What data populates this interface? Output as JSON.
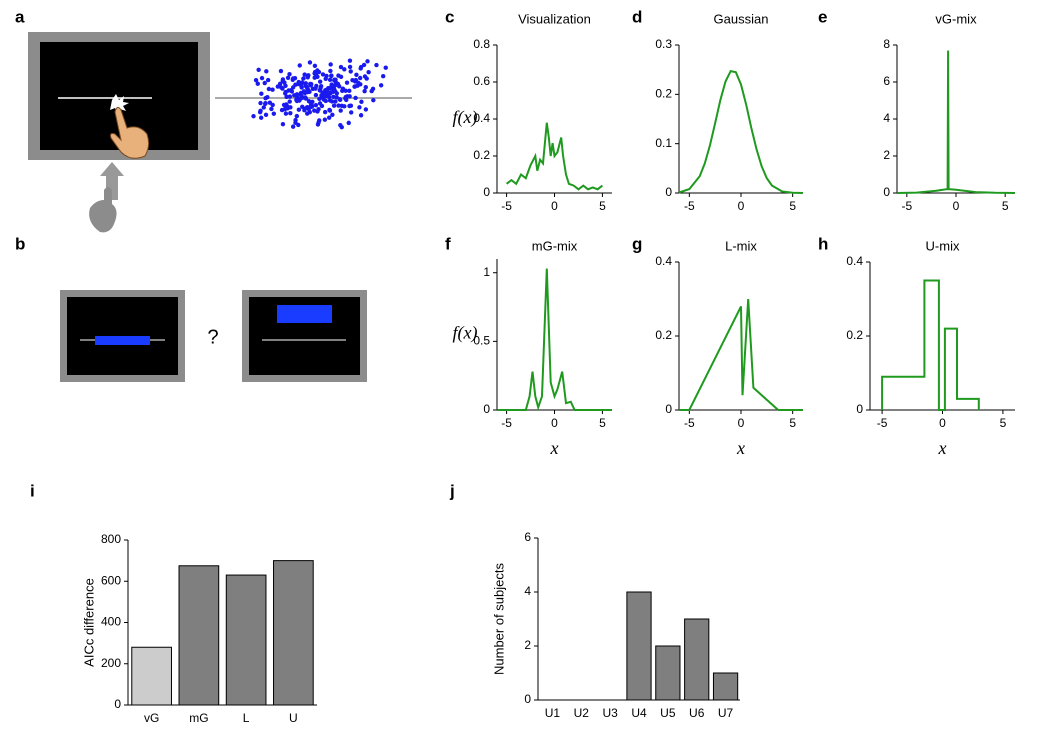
{
  "panel_labels": [
    "a",
    "b",
    "c",
    "d",
    "e",
    "f",
    "g",
    "h",
    "i",
    "j"
  ],
  "question_mark": "?",
  "chart_data": [
    {
      "type": "line",
      "title": "Visualization",
      "ylabel": "f(x)",
      "color": "#1f9a1f",
      "x": [
        -5,
        -4.5,
        -4,
        -3.5,
        -3,
        -2.5,
        -2,
        -1.8,
        -1.5,
        -1.2,
        -0.8,
        -0.6,
        -0.4,
        -0.2,
        0,
        0.3,
        0.7,
        0.9,
        1.2,
        1.5,
        2,
        2.5,
        3,
        3.5,
        4,
        4.5,
        5
      ],
      "values": [
        0.05,
        0.07,
        0.05,
        0.1,
        0.08,
        0.15,
        0.2,
        0.12,
        0.18,
        0.16,
        0.38,
        0.3,
        0.2,
        0.27,
        0.2,
        0.22,
        0.3,
        0.2,
        0.1,
        0.05,
        0.04,
        0.02,
        0.04,
        0.02,
        0.03,
        0.02,
        0.04
      ],
      "xlim": [
        -6,
        6
      ],
      "ylim": [
        0,
        0.8
      ],
      "xticks": [
        -5,
        0,
        5
      ],
      "yticks": [
        0,
        0.2,
        0.4,
        0.6,
        0.8
      ]
    },
    {
      "type": "line",
      "title": "Gaussian",
      "color": "#1f9a1f",
      "x": [
        -6,
        -5,
        -4,
        -3.5,
        -3,
        -2.5,
        -2,
        -1.5,
        -1,
        -0.5,
        0,
        0.5,
        1,
        1.5,
        2,
        2.5,
        3,
        4,
        5,
        6
      ],
      "values": [
        0.001,
        0.008,
        0.034,
        0.06,
        0.097,
        0.142,
        0.188,
        0.226,
        0.247,
        0.245,
        0.22,
        0.179,
        0.132,
        0.089,
        0.054,
        0.03,
        0.015,
        0.003,
        0.0004,
        0
      ],
      "xlim": [
        -6,
        6
      ],
      "ylim": [
        0,
        0.3
      ],
      "xticks": [
        -5,
        0,
        5
      ],
      "yticks": [
        0,
        0.1,
        0.2,
        0.3
      ]
    },
    {
      "type": "line",
      "title": "vG-mix",
      "color": "#1f9a1f",
      "x": [
        -6,
        -4,
        -2,
        -1,
        -0.85,
        -0.8,
        -0.75,
        -0.6,
        0,
        2,
        4,
        6
      ],
      "values": [
        0,
        0.02,
        0.12,
        0.2,
        0.2,
        7.7,
        0.2,
        0.2,
        0.18,
        0.05,
        0.01,
        0
      ],
      "xlim": [
        -6,
        6
      ],
      "ylim": [
        0,
        8
      ],
      "xticks": [
        -5,
        0,
        5
      ],
      "yticks": [
        0,
        2,
        4,
        6,
        8
      ]
    },
    {
      "type": "line",
      "title": "mG-mix",
      "ylabel": "f(x)",
      "xlabel": "x",
      "color": "#1f9a1f",
      "x": [
        -6,
        -3,
        -2.6,
        -2.3,
        -2,
        -1.7,
        -1.3,
        -0.8,
        -0.4,
        0,
        0.3,
        0.8,
        1.2,
        1.7,
        2.1,
        6
      ],
      "values": [
        0,
        0,
        0.1,
        0.28,
        0.1,
        0.02,
        0.1,
        1.03,
        0.2,
        0.1,
        0.15,
        0.28,
        0.05,
        0.06,
        0,
        0
      ],
      "xlim": [
        -6,
        6
      ],
      "ylim": [
        0,
        1.1
      ],
      "xticks": [
        -5,
        0,
        5
      ],
      "yticks": [
        0,
        0.5,
        1
      ]
    },
    {
      "type": "line",
      "title": "L-mix",
      "xlabel": "x",
      "color": "#1f9a1f",
      "x": [
        -6,
        -5,
        0,
        0.15,
        0.7,
        1.2,
        3.6,
        6
      ],
      "values": [
        0,
        0,
        0.28,
        0.04,
        0.3,
        0.06,
        0,
        0
      ],
      "xlim": [
        -6,
        6
      ],
      "ylim": [
        0,
        0.4
      ],
      "xticks": [
        -5,
        0,
        5
      ],
      "yticks": [
        0,
        0.2,
        0.4
      ]
    },
    {
      "type": "line",
      "title": "U-mix",
      "xlabel": "x",
      "color": "#1f9a1f",
      "x": [
        -5,
        -5,
        -1.5,
        -1.5,
        -0.3,
        -0.3,
        0.2,
        0.2,
        1.2,
        1.2,
        3,
        3
      ],
      "values": [
        0,
        0.09,
        0.09,
        0.35,
        0.35,
        0,
        0,
        0.22,
        0.22,
        0.03,
        0.03,
        0
      ],
      "xlim": [
        -6,
        6
      ],
      "ylim": [
        0,
        0.4
      ],
      "xticks": [
        -5,
        0,
        5
      ],
      "yticks": [
        0,
        0.2,
        0.4
      ]
    },
    {
      "type": "bar",
      "ylabel": "AICc  difference",
      "categories": [
        "vG",
        "mG",
        "L",
        "U"
      ],
      "values": [
        280,
        675,
        630,
        700
      ],
      "colors": [
        "#cccccc",
        "#7f7f7f",
        "#7f7f7f",
        "#7f7f7f"
      ],
      "ylim": [
        0,
        800
      ],
      "yticks": [
        0,
        200,
        400,
        600,
        800
      ]
    },
    {
      "type": "bar",
      "ylabel": "Number of subjects",
      "categories": [
        "U1",
        "U2",
        "U3",
        "U4",
        "U5",
        "U6",
        "U7"
      ],
      "values": [
        0,
        0,
        0,
        4,
        2,
        3,
        1
      ],
      "colors": [
        "#7f7f7f",
        "#7f7f7f",
        "#7f7f7f",
        "#7f7f7f",
        "#7f7f7f",
        "#7f7f7f",
        "#7f7f7f"
      ],
      "ylim": [
        0,
        6
      ],
      "yticks": [
        0,
        2,
        4,
        6
      ]
    }
  ]
}
